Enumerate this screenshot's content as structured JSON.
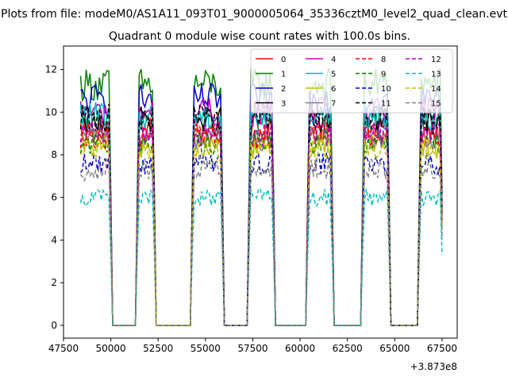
{
  "chart_data": {
    "type": "line",
    "suptitle": "Plots from file: modeM0/AS1A11_093T01_9000005064_35336cztM0_level2_quad_clean.evt",
    "title": "Quadrant 0 module wise count rates with 100.0s bins.",
    "xlabel": "",
    "ylabel": "",
    "x_offset_label": "+3.873e8",
    "xlim": [
      47500,
      68300
    ],
    "ylim": [
      -0.6,
      13.1
    ],
    "x_ticks": [
      47500,
      50000,
      52500,
      55000,
      57500,
      60000,
      62500,
      65000,
      67500
    ],
    "y_ticks": [
      0,
      2,
      4,
      6,
      8,
      10,
      12
    ],
    "grid": false,
    "legend": {
      "position": "top-right",
      "columns": 4
    },
    "segments": [
      {
        "start": 48400,
        "end": 50000
      },
      {
        "start": 51400,
        "end": 52300
      },
      {
        "start": 54300,
        "end": 55900
      },
      {
        "start": 57300,
        "end": 58600
      },
      {
        "start": 60400,
        "end": 61700
      },
      {
        "start": 63300,
        "end": 64700
      },
      {
        "start": 66300,
        "end": 67500
      }
    ],
    "series": [
      {
        "name": "0",
        "color": "#ff0000",
        "dash": "solid",
        "level": 9.2
      },
      {
        "name": "1",
        "color": "#008000",
        "dash": "solid",
        "level": 11.3
      },
      {
        "name": "2",
        "color": "#0000cc",
        "dash": "solid",
        "level": 10.6
      },
      {
        "name": "3",
        "color": "#000000",
        "dash": "solid",
        "level": 9.6
      },
      {
        "name": "4",
        "color": "#bf00bf",
        "dash": "solid",
        "level": 10.0
      },
      {
        "name": "5",
        "color": "#00bfbf",
        "dash": "solid",
        "level": 9.8
      },
      {
        "name": "6",
        "color": "#bfbf00",
        "dash": "solid",
        "level": 8.4
      },
      {
        "name": "7",
        "color": "#808080",
        "dash": "solid",
        "level": 8.8
      },
      {
        "name": "8",
        "color": "#ff0000",
        "dash": "dashed",
        "level": 8.9
      },
      {
        "name": "9",
        "color": "#008000",
        "dash": "dashed",
        "level": 8.6
      },
      {
        "name": "10",
        "color": "#0000cc",
        "dash": "dashed",
        "level": 7.6
      },
      {
        "name": "11",
        "color": "#000000",
        "dash": "dashed",
        "level": 9.7
      },
      {
        "name": "12",
        "color": "#bf00bf",
        "dash": "dashed",
        "level": 9.0
      },
      {
        "name": "13",
        "color": "#00bfbf",
        "dash": "dashed",
        "level": 6.0
      },
      {
        "name": "14",
        "color": "#bfbf00",
        "dash": "dashed",
        "level": 8.3
      },
      {
        "name": "15",
        "color": "#808080",
        "dash": "dashed",
        "level": 7.3
      }
    ]
  }
}
